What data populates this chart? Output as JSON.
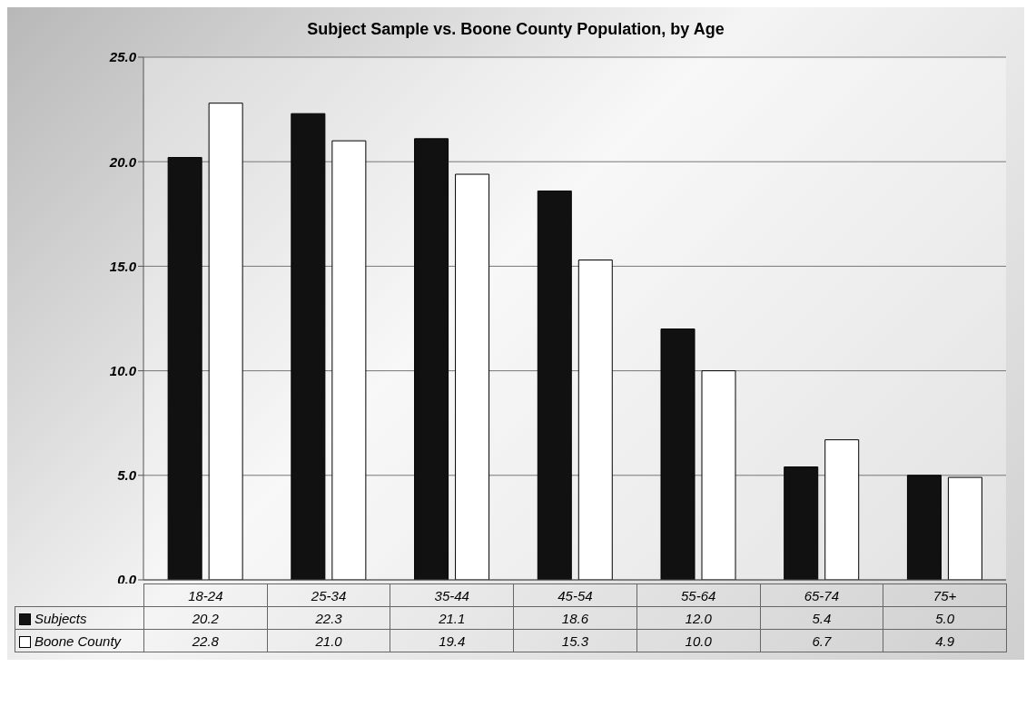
{
  "chart_data": {
    "type": "bar",
    "title": "Subject Sample vs. Boone County Population, by Age",
    "categories": [
      "18-24",
      "25-34",
      "35-44",
      "45-54",
      "55-64",
      "65-74",
      "75+"
    ],
    "series": [
      {
        "name": "Subjects",
        "color": "#111111",
        "values": [
          20.2,
          22.3,
          21.1,
          18.6,
          12.0,
          5.4,
          5.0
        ],
        "value_labels": [
          "20.2",
          "22.3",
          "21.1",
          "18.6",
          "12.0",
          "5.4",
          "5.0"
        ]
      },
      {
        "name": "Boone County",
        "color": "#ffffff",
        "values": [
          22.8,
          21.0,
          19.4,
          15.3,
          10.0,
          6.7,
          4.9
        ],
        "value_labels": [
          "22.8",
          "21.0",
          "19.4",
          "15.3",
          "10.0",
          "6.7",
          "4.9"
        ]
      }
    ],
    "ylim": [
      0,
      25
    ],
    "yticks": [
      {
        "value": 0,
        "label": "0.0"
      },
      {
        "value": 5,
        "label": "5.0"
      },
      {
        "value": 10,
        "label": "10.0"
      },
      {
        "value": 15,
        "label": "15.0"
      },
      {
        "value": 20,
        "label": "20.0"
      },
      {
        "value": 25,
        "label": "25.0"
      }
    ],
    "grid": "y",
    "legend": "bottom"
  }
}
